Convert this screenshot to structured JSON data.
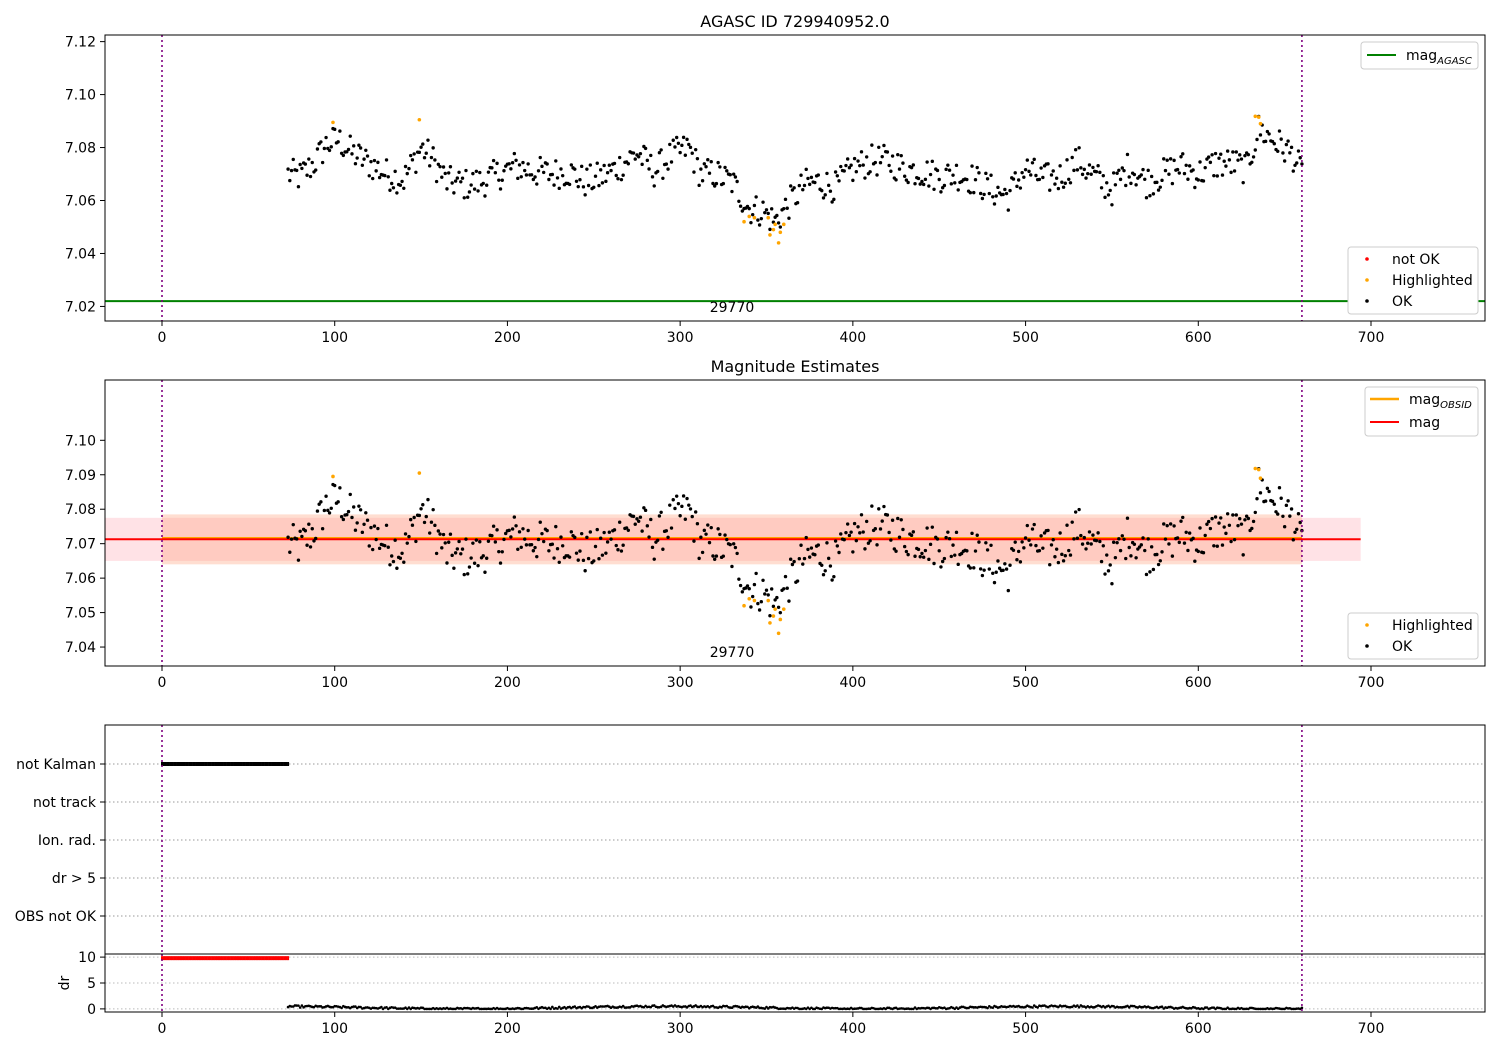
{
  "chart_data": [
    {
      "type": "scatter",
      "title": "AGASC ID 729940952.0",
      "xlabel": "",
      "ylabel": "",
      "xlim": [
        -33,
        766
      ],
      "ylim": [
        7.0145,
        7.1225
      ],
      "x_ticks": [
        0,
        100,
        200,
        300,
        400,
        500,
        600,
        700
      ],
      "x_tick_labels": [
        "0",
        "100",
        "200",
        "300",
        "400",
        "500",
        "600",
        "700"
      ],
      "y_ticks": [
        7.02,
        7.04,
        7.06,
        7.08,
        7.1,
        7.12
      ],
      "y_tick_labels": [
        "7.02",
        "7.04",
        "7.06",
        "7.08",
        "7.10",
        "7.12"
      ],
      "vlines": [
        0,
        660
      ],
      "annotation": {
        "text": "29770",
        "x": 330
      },
      "legend_placement": "top-right and lower-right",
      "series": [
        {
          "name": "mag_AGASC",
          "kind": "hline",
          "value": 7.022,
          "color": "#008000"
        },
        {
          "name": "not OK",
          "kind": "points",
          "color": "#ff0000",
          "values": []
        },
        {
          "name": "Highlighted",
          "kind": "points",
          "color": "#ffa500",
          "role": "highlighted"
        },
        {
          "name": "OK",
          "kind": "points",
          "color": "#000000",
          "role": "ok"
        }
      ],
      "legends": [
        {
          "position": "top-right",
          "entries": [
            {
              "label_base": "mag",
              "label_sub": "AGASC",
              "kind": "line",
              "color": "#008000"
            }
          ]
        },
        {
          "position": "lower-right",
          "entries": [
            {
              "label": "not OK",
              "kind": "point",
              "color": "#ff0000"
            },
            {
              "label": "Highlighted",
              "kind": "point",
              "color": "#ffa500"
            },
            {
              "label": "OK",
              "kind": "point",
              "color": "#000000"
            }
          ]
        }
      ]
    },
    {
      "type": "scatter",
      "title": "Magnitude Estimates",
      "xlabel": "",
      "ylabel": "",
      "xlim": [
        -33,
        766
      ],
      "ylim": [
        7.0345,
        7.1175
      ],
      "x_ticks": [
        0,
        100,
        200,
        300,
        400,
        500,
        600,
        700
      ],
      "x_tick_labels": [
        "0",
        "100",
        "200",
        "300",
        "400",
        "500",
        "600",
        "700"
      ],
      "y_ticks": [
        7.04,
        7.05,
        7.06,
        7.07,
        7.08,
        7.09,
        7.1
      ],
      "y_tick_labels": [
        "7.04",
        "7.05",
        "7.06",
        "7.07",
        "7.08",
        "7.09",
        "7.10"
      ],
      "vlines": [
        0,
        660
      ],
      "annotation": {
        "text": "29770",
        "x": 330
      },
      "bands": [
        {
          "x_range": [
            -33,
            694
          ],
          "y_range": [
            7.065,
            7.0775
          ],
          "color": "#ffb6c1",
          "alpha": 0.4
        },
        {
          "x_range": [
            0,
            660
          ],
          "y_range": [
            7.064,
            7.0785
          ],
          "color": "#ffa07a",
          "alpha": 0.35
        }
      ],
      "series": [
        {
          "name": "mag_OBSID",
          "kind": "hline",
          "value": 7.0715,
          "x_range": [
            0,
            660
          ],
          "color": "#ffa500"
        },
        {
          "name": "mag",
          "kind": "hline",
          "value": 7.0713,
          "x_range": [
            -33,
            694
          ],
          "color": "#ff0000"
        },
        {
          "name": "Highlighted",
          "kind": "points",
          "color": "#ffa500",
          "role": "highlighted"
        },
        {
          "name": "OK",
          "kind": "points",
          "color": "#000000",
          "role": "ok"
        }
      ],
      "legends": [
        {
          "position": "top-right",
          "entries": [
            {
              "label_base": "mag",
              "label_sub": "OBSID",
              "kind": "line",
              "color": "#ffa500"
            },
            {
              "label": "mag",
              "kind": "line",
              "color": "#ff0000"
            }
          ]
        },
        {
          "position": "lower-right",
          "entries": [
            {
              "label": "Highlighted",
              "kind": "point",
              "color": "#ffa500"
            },
            {
              "label": "OK",
              "kind": "point",
              "color": "#000000"
            }
          ]
        }
      ]
    },
    {
      "type": "scatter",
      "title": "",
      "xlabel": "",
      "ylabel": "",
      "xlim": [
        -33,
        766
      ],
      "categories": [
        "OBS not OK",
        "dr > 5",
        "Ion. rad.",
        "not track",
        "not Kalman"
      ],
      "vlines": [
        0,
        660
      ],
      "flag_segments": [
        {
          "category": "not Kalman",
          "x_range": [
            0,
            73
          ],
          "color": "#000000"
        }
      ]
    },
    {
      "type": "scatter",
      "title": "",
      "xlabel": "",
      "ylabel": "dr",
      "xlim": [
        -33,
        766
      ],
      "ylim": [
        -0.6,
        10.6
      ],
      "y_ticks": [
        0,
        5,
        10
      ],
      "y_tick_labels": [
        "0",
        "5",
        "10"
      ],
      "x_ticks": [
        0,
        100,
        200,
        300,
        400,
        500,
        600,
        700
      ],
      "x_tick_labels": [
        "0",
        "100",
        "200",
        "300",
        "400",
        "500",
        "600",
        "700"
      ],
      "vlines": [
        0,
        660
      ],
      "series": [
        {
          "name": "dr_clipped",
          "kind": "segment",
          "x_range": [
            0,
            73
          ],
          "value": 9.8,
          "color": "#ff0000"
        },
        {
          "name": "dr",
          "kind": "points",
          "x_range": [
            73,
            660
          ],
          "approx_range": [
            0.0,
            0.9
          ],
          "color": "#000000"
        }
      ]
    }
  ],
  "time_series": {
    "x_start": 73,
    "x_end": 660,
    "anchors": [
      [
        73,
        7.07
      ],
      [
        80,
        7.069
      ],
      [
        88,
        7.074
      ],
      [
        95,
        7.081
      ],
      [
        102,
        7.083
      ],
      [
        110,
        7.078
      ],
      [
        120,
        7.074
      ],
      [
        130,
        7.07
      ],
      [
        140,
        7.068
      ],
      [
        150,
        7.08
      ],
      [
        156,
        7.076
      ],
      [
        165,
        7.067
      ],
      [
        175,
        7.066
      ],
      [
        185,
        7.067
      ],
      [
        195,
        7.07
      ],
      [
        205,
        7.073
      ],
      [
        215,
        7.071
      ],
      [
        225,
        7.07
      ],
      [
        235,
        7.071
      ],
      [
        245,
        7.067
      ],
      [
        255,
        7.069
      ],
      [
        265,
        7.073
      ],
      [
        275,
        7.078
      ],
      [
        285,
        7.071
      ],
      [
        295,
        7.077
      ],
      [
        305,
        7.08
      ],
      [
        312,
        7.07
      ],
      [
        320,
        7.07
      ],
      [
        330,
        7.067
      ],
      [
        340,
        7.057
      ],
      [
        348,
        7.056
      ],
      [
        355,
        7.052
      ],
      [
        362,
        7.058
      ],
      [
        372,
        7.066
      ],
      [
        380,
        7.067
      ],
      [
        390,
        7.065
      ],
      [
        400,
        7.072
      ],
      [
        410,
        7.075
      ],
      [
        420,
        7.075
      ],
      [
        430,
        7.072
      ],
      [
        440,
        7.071
      ],
      [
        450,
        7.069
      ],
      [
        460,
        7.07
      ],
      [
        470,
        7.068
      ],
      [
        480,
        7.064
      ],
      [
        490,
        7.062
      ],
      [
        500,
        7.072
      ],
      [
        510,
        7.068
      ],
      [
        520,
        7.069
      ],
      [
        530,
        7.075
      ],
      [
        540,
        7.069
      ],
      [
        550,
        7.064
      ],
      [
        560,
        7.073
      ],
      [
        570,
        7.067
      ],
      [
        580,
        7.07
      ],
      [
        590,
        7.073
      ],
      [
        600,
        7.07
      ],
      [
        610,
        7.074
      ],
      [
        620,
        7.074
      ],
      [
        628,
        7.072
      ],
      [
        635,
        7.087
      ],
      [
        645,
        7.082
      ],
      [
        655,
        7.077
      ],
      [
        660,
        7.07
      ]
    ],
    "highlighted": [
      [
        99,
        7.0895
      ],
      [
        149,
        7.0905
      ],
      [
        337,
        7.052
      ],
      [
        340,
        7.054
      ],
      [
        343,
        7.0535
      ],
      [
        351,
        7.0535
      ],
      [
        352,
        7.047
      ],
      [
        354,
        7.049
      ],
      [
        355,
        7.051
      ],
      [
        357,
        7.044
      ],
      [
        358,
        7.048
      ],
      [
        360,
        7.051
      ],
      [
        633,
        7.0918
      ],
      [
        635,
        7.0915
      ],
      [
        636,
        7.089
      ]
    ]
  }
}
